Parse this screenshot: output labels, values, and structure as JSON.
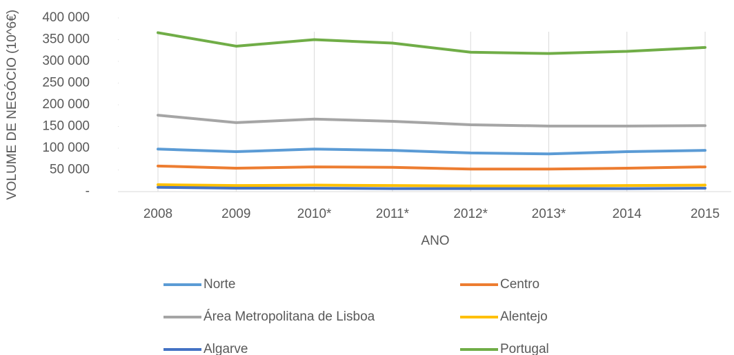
{
  "chart_data": {
    "type": "line",
    "x_label": "ANO",
    "y_label": "VOLUME DE NEGÓCIO (10^6€)",
    "categories": [
      "2008",
      "2009",
      "2010*",
      "2011*",
      "2012*",
      "2013*",
      "2014",
      "2015"
    ],
    "series": [
      {
        "name": "Norte",
        "color": "#5b9bd5",
        "values": [
          98000,
          92000,
          98000,
          95000,
          89000,
          87000,
          92000,
          95000
        ]
      },
      {
        "name": "Centro",
        "color": "#ed7d31",
        "values": [
          59000,
          54000,
          57000,
          56000,
          52000,
          52000,
          54000,
          57000
        ]
      },
      {
        "name": "Área Metropolitana de Lisboa",
        "color": "#a5a5a5",
        "values": [
          176000,
          159000,
          167000,
          162000,
          154000,
          151000,
          151000,
          152000
        ]
      },
      {
        "name": "Alentejo",
        "color": "#ffc000",
        "values": [
          16000,
          14000,
          15000,
          14000,
          13000,
          13000,
          14000,
          15000
        ]
      },
      {
        "name": "Algarve",
        "color": "#4472c4",
        "values": [
          10000,
          8000,
          8000,
          7000,
          7000,
          7000,
          7000,
          8000
        ]
      },
      {
        "name": "Portugal",
        "color": "#70ad47",
        "values": [
          366000,
          335000,
          350000,
          342000,
          321000,
          318000,
          323000,
          332000
        ]
      }
    ],
    "ylim": [
      0,
      400000
    ],
    "yticks": [
      {
        "value": 0,
        "label": "-"
      },
      {
        "value": 50000,
        "label": "50 000"
      },
      {
        "value": 100000,
        "label": "100 000"
      },
      {
        "value": 150000,
        "label": "150 000"
      },
      {
        "value": 200000,
        "label": "200 000"
      },
      {
        "value": 250000,
        "label": "250 000"
      },
      {
        "value": 300000,
        "label": "300 000"
      },
      {
        "value": 350000,
        "label": "350 000"
      },
      {
        "value": 400000,
        "label": "400 000"
      }
    ],
    "legend": "bottom"
  }
}
